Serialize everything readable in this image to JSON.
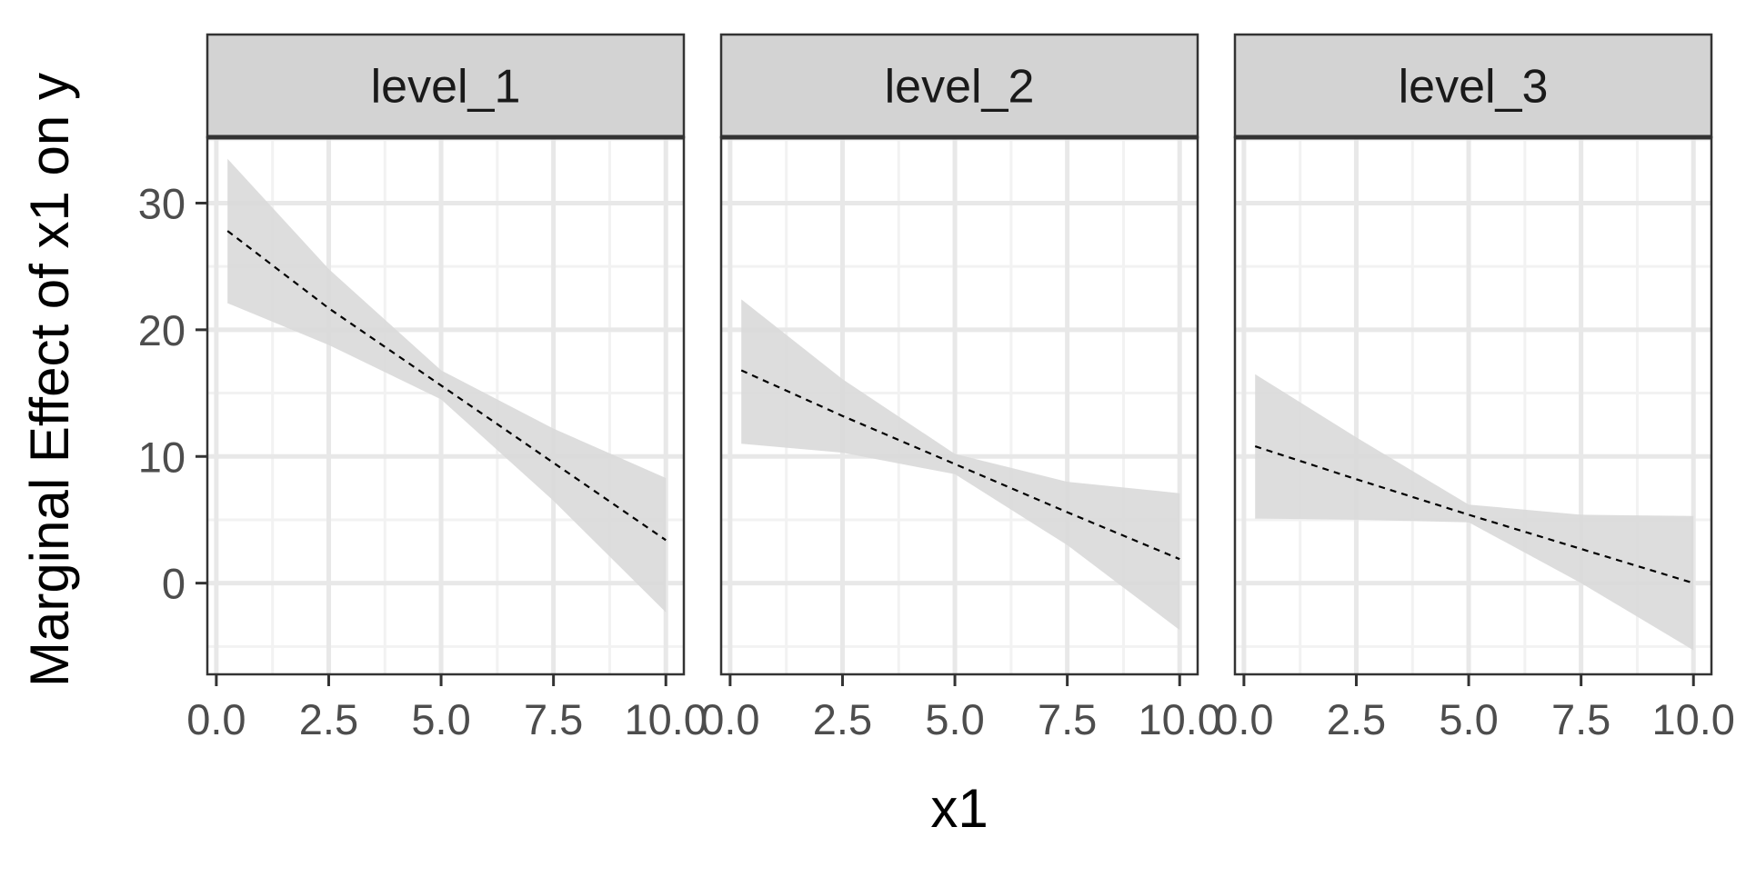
{
  "chart_data": {
    "type": "line",
    "xlabel": "x1",
    "ylabel": "Marginal Effect of x1 on y",
    "xlim": [
      -0.2,
      10.4
    ],
    "ylim": [
      -7.2,
      35.2
    ],
    "x_ticks": [
      0.0,
      2.5,
      5.0,
      7.5,
      10.0
    ],
    "x_tick_labels": [
      "0.0",
      "2.5",
      "5.0",
      "7.5",
      "10.0"
    ],
    "y_ticks": [
      0,
      10,
      20,
      30
    ],
    "y_tick_labels": [
      "0",
      "10",
      "20",
      "30"
    ],
    "grid": true,
    "line_style": "dashed",
    "colors": {
      "strip_fill": "#d3d3d3",
      "ribbon_fill": "#d9d9d9",
      "grid_major": "#e8e8e8",
      "grid_minor": "#f2f2f2",
      "panel_border": "#333333",
      "line": "#000000"
    },
    "panels": [
      {
        "label": "level_1",
        "x": [
          0.25,
          2.5,
          5.0,
          7.5,
          10.0
        ],
        "y": [
          27.8,
          21.7,
          15.6,
          9.5,
          3.4
        ],
        "lower": [
          22.1,
          18.8,
          14.5,
          6.5,
          -2.3
        ],
        "upper": [
          33.5,
          24.8,
          16.8,
          12.2,
          8.3
        ]
      },
      {
        "label": "level_2",
        "x": [
          0.25,
          2.5,
          5.0,
          7.5,
          10.0
        ],
        "y": [
          16.8,
          13.2,
          9.4,
          5.6,
          1.9
        ],
        "lower": [
          11.0,
          10.3,
          8.6,
          3.0,
          -3.7
        ],
        "upper": [
          22.4,
          16.1,
          10.2,
          8.0,
          7.1
        ]
      },
      {
        "label": "level_3",
        "x": [
          0.25,
          2.5,
          5.0,
          7.5,
          10.0
        ],
        "y": [
          10.8,
          8.2,
          5.4,
          2.7,
          0.0
        ],
        "lower": [
          5.1,
          5.0,
          4.8,
          0.0,
          -5.3
        ],
        "upper": [
          16.5,
          11.5,
          6.2,
          5.4,
          5.3
        ]
      }
    ]
  }
}
